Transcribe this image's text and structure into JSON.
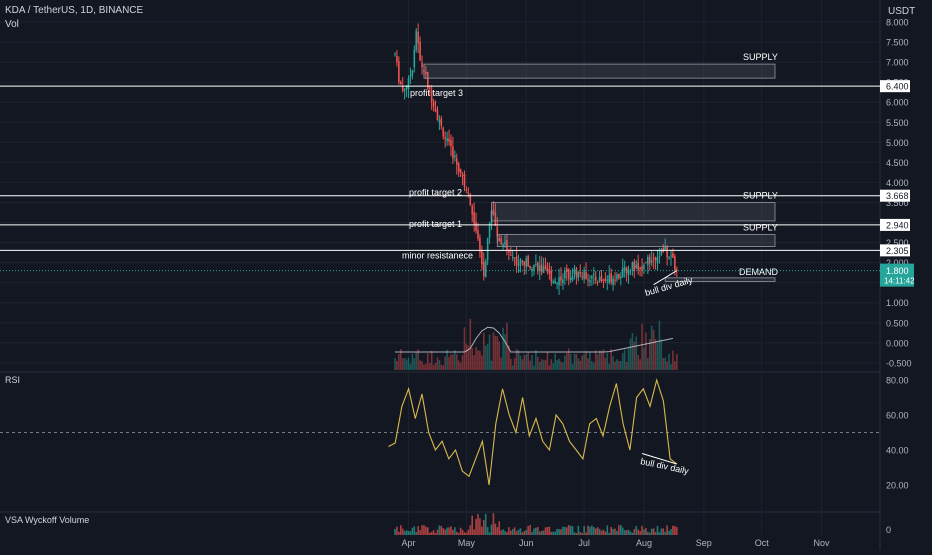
{
  "header": {
    "symbol": "KDA / TetherUS, 1D, BINANCE",
    "vol_label": "Vol",
    "currency": "USDT"
  },
  "chart_data": [
    {
      "type": "candlestick",
      "title": "KDA / TetherUS, 1D, BINANCE",
      "yaxis_ticks": [
        "8.000",
        "7.500",
        "7.000",
        "6.500",
        "6.000",
        "5.500",
        "5.000",
        "4.500",
        "4.000",
        "3.500",
        "3.000",
        "2.500",
        "2.000",
        "1.500",
        "1.000",
        "0.500",
        "0.000",
        "-0.500"
      ],
      "yaxis_tick_values": [
        8,
        7.5,
        7,
        6.5,
        6,
        5.5,
        5,
        4.5,
        4,
        3.5,
        3,
        2.5,
        2,
        1.5,
        1,
        0.5,
        0,
        -0.5
      ],
      "xaxis_ticks": [
        "Apr",
        "May",
        "Jun",
        "Jul",
        "Aug",
        "Sep",
        "Oct",
        "Nov"
      ],
      "price_tags": [
        {
          "text": "6.400",
          "value": 6.4
        },
        {
          "text": "3.668",
          "value": 3.668
        },
        {
          "text": "2.940",
          "value": 2.94
        },
        {
          "text": "2.305",
          "value": 2.305
        }
      ],
      "current_price": {
        "value": "1.800",
        "countdown": "14:11:42",
        "color": "#26a69a"
      },
      "levels": [
        {
          "label": "profit target 3",
          "value": 6.4
        },
        {
          "label": "profit target 2",
          "value": 3.668
        },
        {
          "label": "profit target 1",
          "value": 2.94
        },
        {
          "label": "minor resistanece",
          "value": 2.305
        }
      ],
      "zones": [
        {
          "label": "SUPPLY",
          "from": 6.6,
          "to": 6.95
        },
        {
          "label": "SUPPLY",
          "from": 3.04,
          "to": 3.5
        },
        {
          "label": "SUPPLY",
          "from": 2.4,
          "to": 2.7
        },
        {
          "label": "DEMAND",
          "from": 1.53,
          "to": 1.62
        }
      ],
      "annotation": "bull div daily",
      "approx_close_path": [
        {
          "x": "Mar 25",
          "y": 7.2
        },
        {
          "x": "Mar 27",
          "y": 6.6
        },
        {
          "x": "Mar 29",
          "y": 6.3
        },
        {
          "x": "Apr 1",
          "y": 6.5
        },
        {
          "x": "Apr 3",
          "y": 6.9
        },
        {
          "x": "Apr 5",
          "y": 7.8
        },
        {
          "x": "Apr 7",
          "y": 7.0
        },
        {
          "x": "Apr 9",
          "y": 6.8
        },
        {
          "x": "Apr 11",
          "y": 6.4
        },
        {
          "x": "Apr 14",
          "y": 6.0
        },
        {
          "x": "Apr 17",
          "y": 5.5
        },
        {
          "x": "Apr 21",
          "y": 5.0
        },
        {
          "x": "Apr 25",
          "y": 4.6
        },
        {
          "x": "Apr 29",
          "y": 4.1
        },
        {
          "x": "May 2",
          "y": 3.7
        },
        {
          "x": "May 5",
          "y": 3.0
        },
        {
          "x": "May 8",
          "y": 2.3
        },
        {
          "x": "May 10",
          "y": 1.6
        },
        {
          "x": "May 12",
          "y": 2.6
        },
        {
          "x": "May 14",
          "y": 3.3
        },
        {
          "x": "May 17",
          "y": 2.7
        },
        {
          "x": "May 20",
          "y": 2.5
        },
        {
          "x": "May 24",
          "y": 2.2
        },
        {
          "x": "May 28",
          "y": 2.0
        },
        {
          "x": "Jun 2",
          "y": 2.0
        },
        {
          "x": "Jun 7",
          "y": 1.9
        },
        {
          "x": "Jun 12",
          "y": 1.7
        },
        {
          "x": "Jun 16",
          "y": 1.55
        },
        {
          "x": "Jun 21",
          "y": 1.7
        },
        {
          "x": "Jun 26",
          "y": 1.75
        },
        {
          "x": "Jul 1",
          "y": 1.7
        },
        {
          "x": "Jul 6",
          "y": 1.6
        },
        {
          "x": "Jul 11",
          "y": 1.55
        },
        {
          "x": "Jul 16",
          "y": 1.65
        },
        {
          "x": "Jul 21",
          "y": 1.75
        },
        {
          "x": "Jul 26",
          "y": 1.9
        },
        {
          "x": "Jul 31",
          "y": 1.8
        },
        {
          "x": "Aug 4",
          "y": 2.1
        },
        {
          "x": "Aug 8",
          "y": 2.2
        },
        {
          "x": "Aug 12",
          "y": 2.3
        },
        {
          "x": "Aug 15",
          "y": 2.1
        },
        {
          "x": "Aug 18",
          "y": 1.8
        }
      ]
    },
    {
      "type": "line",
      "title": "RSI",
      "yaxis_ticks": [
        "80.00",
        "60.00",
        "40.00",
        "20.00"
      ],
      "yaxis_tick_values": [
        80,
        60,
        40,
        20
      ],
      "midline": 50,
      "approx_values": [
        42,
        44,
        65,
        75,
        58,
        72,
        50,
        40,
        45,
        35,
        40,
        28,
        25,
        35,
        45,
        20,
        55,
        75,
        60,
        50,
        70,
        48,
        58,
        45,
        40,
        60,
        55,
        45,
        40,
        35,
        55,
        58,
        48,
        65,
        78,
        55,
        40,
        70,
        75,
        65,
        80,
        68,
        35,
        32
      ]
    },
    {
      "type": "bar",
      "title": "VSA Wyckoff Volume",
      "yaxis_ticks": [
        "0"
      ]
    }
  ],
  "colors": {
    "background": "#131722",
    "up": "#26a69a",
    "down": "#ef5350",
    "rsi": "#d8b94a",
    "grid": "#1e222d",
    "axis_text": "#b2b5be"
  }
}
